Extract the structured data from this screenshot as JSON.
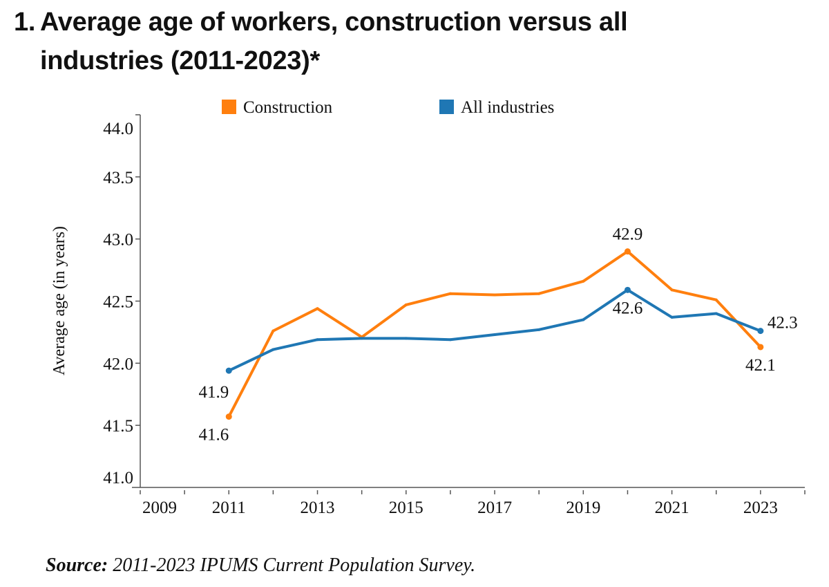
{
  "title": {
    "number": "1.",
    "line1": "Average age of workers, construction versus all",
    "line2": "industries (2011-2023)*"
  },
  "source": {
    "label": "Source:",
    "text": " 2011-2023 IPUMS Current Population Survey."
  },
  "colors": {
    "construction": "#FF7F0E",
    "all_industries": "#1F77B4",
    "axis": "#555555"
  },
  "chart_data": {
    "type": "line",
    "title": "Average age of workers, construction versus all industries (2011-2023)*",
    "xlabel": "",
    "ylabel": "Average age (in years)",
    "xlim": [
      2009,
      2024
    ],
    "ylim": [
      41.0,
      44.0
    ],
    "x_ticks": [
      2009,
      2010,
      2011,
      2012,
      2013,
      2014,
      2015,
      2016,
      2017,
      2018,
      2019,
      2020,
      2021,
      2022,
      2023,
      2024
    ],
    "x_tick_labels": [
      {
        "year": 2009,
        "label": "2009"
      },
      {
        "year": 2011,
        "label": "2011"
      },
      {
        "year": 2013,
        "label": "2013"
      },
      {
        "year": 2015,
        "label": "2015"
      },
      {
        "year": 2017,
        "label": "2017"
      },
      {
        "year": 2019,
        "label": "2019"
      },
      {
        "year": 2021,
        "label": "2021"
      },
      {
        "year": 2023,
        "label": "2023"
      }
    ],
    "y_ticks": [
      {
        "value": 41.0,
        "label": "41.0"
      },
      {
        "value": 41.5,
        "label": "41.5"
      },
      {
        "value": 42.0,
        "label": "42.0"
      },
      {
        "value": 42.5,
        "label": "42.5"
      },
      {
        "value": 43.0,
        "label": "43.0"
      },
      {
        "value": 43.5,
        "label": "43.5"
      },
      {
        "value": 44.0,
        "label": "44.0"
      }
    ],
    "grid": false,
    "legend_position": "top-center",
    "x": [
      2011,
      2012,
      2013,
      2014,
      2015,
      2016,
      2017,
      2018,
      2019,
      2020,
      2021,
      2022,
      2023
    ],
    "series": [
      {
        "key": "construction",
        "name": "Construction",
        "values": [
          41.57,
          42.26,
          42.44,
          42.21,
          42.47,
          42.56,
          42.55,
          42.56,
          42.66,
          42.9,
          42.59,
          42.51,
          42.13
        ],
        "markers": [
          {
            "year": 2011,
            "value": 41.57,
            "label": "41.6",
            "pos": "below"
          },
          {
            "year": 2020,
            "value": 42.9,
            "label": "42.9",
            "pos": "above"
          },
          {
            "year": 2023,
            "value": 42.13,
            "label": "42.1",
            "pos": "below"
          }
        ]
      },
      {
        "key": "all_industries",
        "name": "All industries",
        "values": [
          41.94,
          42.11,
          42.19,
          42.2,
          42.2,
          42.19,
          42.23,
          42.27,
          42.35,
          42.59,
          42.37,
          42.4,
          42.26
        ],
        "markers": [
          {
            "year": 2011,
            "value": 41.94,
            "label": "41.9",
            "pos": "below-left"
          },
          {
            "year": 2020,
            "value": 42.59,
            "label": "42.6",
            "pos": "below"
          },
          {
            "year": 2023,
            "value": 42.26,
            "label": "42.3",
            "pos": "right"
          }
        ]
      }
    ]
  }
}
